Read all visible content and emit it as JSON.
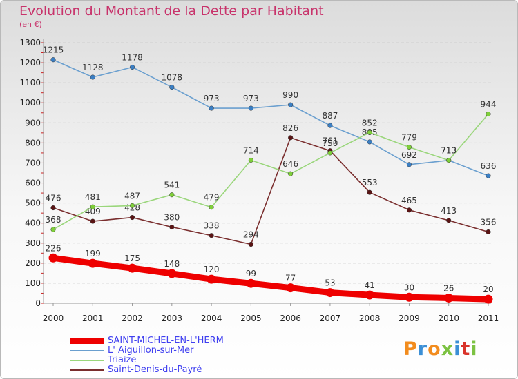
{
  "header": {
    "title": "Evolution du Montant de la Dette par Habitant",
    "subtitle": "(en €)"
  },
  "logo": {
    "text": "Proxiti",
    "colors": [
      "#f28c1e",
      "#3b8fd6",
      "#f28c1e",
      "#7cc242",
      "#3b8fd6",
      "#d9342b",
      "#7cc242"
    ]
  },
  "chart_data": {
    "type": "line",
    "x": [
      2000,
      2001,
      2002,
      2003,
      2004,
      2005,
      2006,
      2007,
      2008,
      2009,
      2010,
      2011
    ],
    "ylim": [
      0,
      1300
    ],
    "yticks": [
      0,
      100,
      200,
      300,
      400,
      500,
      600,
      700,
      800,
      900,
      1000,
      1100,
      1200,
      1300
    ],
    "grid": "horizontal",
    "legend_position": "bottom-left",
    "series": [
      {
        "name": "SAINT-MICHEL-EN-L'HERM",
        "color": "#ee0000",
        "values": [
          226,
          199,
          175,
          148,
          120,
          99,
          77,
          53,
          41,
          30,
          26,
          20
        ]
      },
      {
        "name": "L' Aiguillon-sur-Mer",
        "color": "#6a9fcf",
        "values": [
          1215,
          1128,
          1178,
          1078,
          973,
          973,
          990,
          887,
          805,
          692,
          713,
          636
        ]
      },
      {
        "name": "Triaize",
        "color": "#9ad67b",
        "values": [
          368,
          481,
          487,
          541,
          479,
          714,
          646,
          750,
          852,
          779,
          713,
          944
        ]
      },
      {
        "name": "Saint-Denis-du-Payré",
        "color": "#7a2e2e",
        "values": [
          476,
          409,
          428,
          380,
          338,
          294,
          826,
          761,
          553,
          465,
          413,
          356
        ]
      }
    ]
  }
}
